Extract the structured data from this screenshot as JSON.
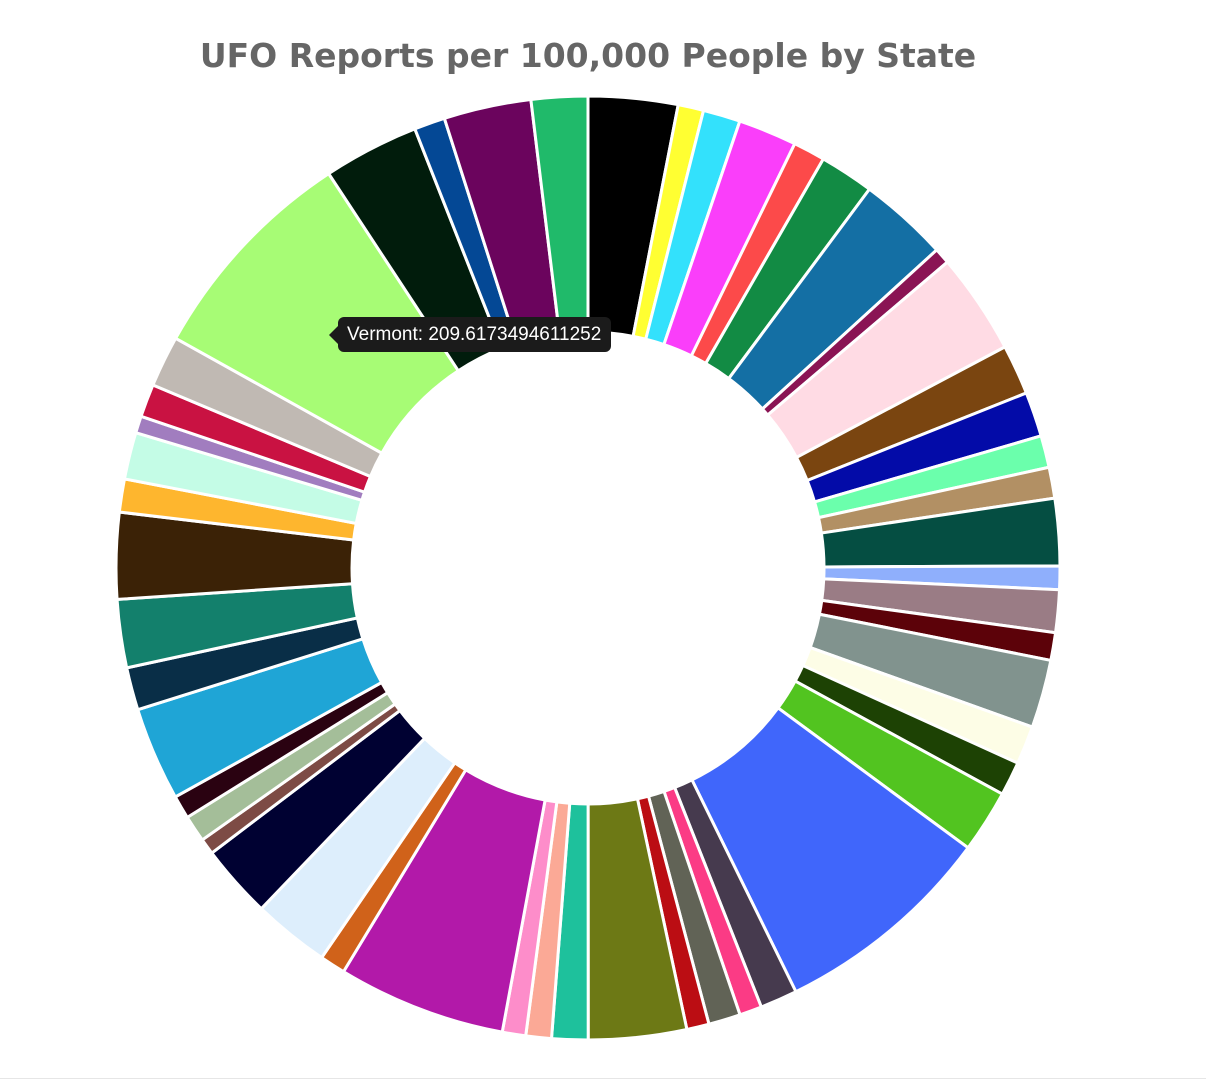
{
  "chart_data": {
    "type": "doughnut",
    "title": "UFO Reports per 100,000 People by State",
    "tooltip": {
      "label": "Vermont",
      "value": "209.6173494611252"
    },
    "unit": "UFO reports per 100,000 people",
    "slices": [
      {
        "value": 84,
        "color": "#000000"
      },
      {
        "value": 24,
        "color": "#ffff32"
      },
      {
        "value": 35,
        "color": "#33e1fc"
      },
      {
        "value": 55,
        "color": "#fa3efa"
      },
      {
        "value": 30,
        "color": "#fc4a4a"
      },
      {
        "value": 51,
        "color": "#128b44"
      },
      {
        "value": 84,
        "color": "#146fa4"
      },
      {
        "value": 15,
        "color": "#8a1454"
      },
      {
        "value": 95,
        "color": "#ffdbe4"
      },
      {
        "value": 47,
        "color": "#7a4510"
      },
      {
        "value": 42,
        "color": "#030ba8"
      },
      {
        "value": 30,
        "color": "#6bffac"
      },
      {
        "value": 29,
        "color": "#b29064"
      },
      {
        "value": 63,
        "color": "#054e42"
      },
      {
        "value": 22,
        "color": "#8faffc"
      },
      {
        "value": 40,
        "color": "#9a7c85"
      },
      {
        "value": 26,
        "color": "#5c0209"
      },
      {
        "value": 64,
        "color": "#81938e"
      },
      {
        "value": 36,
        "color": "#fdfde6"
      },
      {
        "value": 32,
        "color": "#1d4204"
      },
      {
        "value": 59,
        "color": "#52c420"
      },
      {
        "value": 209.6173494611252,
        "color": "#4066fb"
      },
      {
        "value": 35,
        "color": "#463a4e"
      },
      {
        "value": 21,
        "color": "#fb3b85"
      },
      {
        "value": 30,
        "color": "#616356"
      },
      {
        "value": 21,
        "color": "#bb0d13"
      },
      {
        "value": 92,
        "color": "#6d7915"
      },
      {
        "value": 34,
        "color": "#1ec19c"
      },
      {
        "value": 24,
        "color": "#fba996"
      },
      {
        "value": 22,
        "color": "#fd8dca"
      },
      {
        "value": 158,
        "color": "#b219a9"
      },
      {
        "value": 24,
        "color": "#d0621a"
      },
      {
        "value": 72,
        "color": "#ddeefc"
      },
      {
        "value": 69,
        "color": "#000132"
      },
      {
        "value": 15,
        "color": "#7d4b45"
      },
      {
        "value": 25,
        "color": "#a4be99"
      },
      {
        "value": 22,
        "color": "#2a0211"
      },
      {
        "value": 88,
        "color": "#1fa5d6"
      },
      {
        "value": 40,
        "color": "#092e47"
      },
      {
        "value": 64,
        "color": "#13806c"
      },
      {
        "value": 81,
        "color": "#3b2206"
      },
      {
        "value": 31,
        "color": "#feb62e"
      },
      {
        "value": 44,
        "color": "#c4fce6"
      },
      {
        "value": 16,
        "color": "#a17dbf"
      },
      {
        "value": 31,
        "color": "#c91242"
      },
      {
        "value": 48,
        "color": "#c0b9b3"
      },
      {
        "value": 210,
        "color": "#a7fc75"
      },
      {
        "value": 90,
        "color": "#011c0c"
      },
      {
        "value": 29,
        "color": "#044895"
      },
      {
        "value": 82,
        "color": "#6b045d"
      },
      {
        "value": 53,
        "color": "#20ba6a"
      }
    ]
  }
}
